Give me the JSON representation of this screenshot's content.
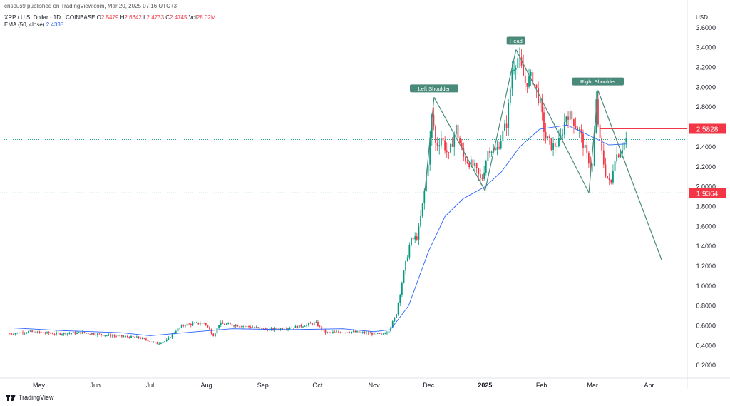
{
  "header": {
    "published": "crispus9 published on TradingView.com, Mar 20, 2025 07:16 UTC+3",
    "symbol": "XRP / U.S. Dollar · 1D · COINBASE",
    "o_label": "O",
    "o_value": "2.5479",
    "h_label": "H",
    "h_value": "2.6642",
    "l_label": "L",
    "l_value": "2.4733",
    "c_label": "C",
    "c_value": "2.4745",
    "vol_label": "Vol",
    "vol_value": "28.02M",
    "ema_label": "EMA (50, close)",
    "ema_value": "2.4335"
  },
  "currency": "USD",
  "footer": {
    "brand": "TradingView"
  },
  "colors": {
    "up": "#089981",
    "down": "#f23645",
    "ema": "#2962ff",
    "pattern": "#4a8a7a",
    "level": "#f23645"
  },
  "chart_data": {
    "type": "line",
    "title": "",
    "xlabel": "",
    "ylabel": "USD",
    "ylim": [
      0,
      3.7
    ],
    "yticks": [
      "3.6000",
      "3.4000",
      "3.2000",
      "3.0000",
      "2.8000",
      "2.6000",
      "2.4000",
      "2.2000",
      "2.0000",
      "1.8000",
      "1.6000",
      "1.4000",
      "1.2000",
      "1.0000",
      "0.8000",
      "0.6000",
      "0.4000",
      "0.2000"
    ],
    "xticks": [
      {
        "label": "May",
        "date": "2024-05-01",
        "bold": false
      },
      {
        "label": "Jun",
        "date": "2024-06-01",
        "bold": false
      },
      {
        "label": "Jul",
        "date": "2024-07-01",
        "bold": false
      },
      {
        "label": "Aug",
        "date": "2024-08-01",
        "bold": false
      },
      {
        "label": "Sep",
        "date": "2024-09-01",
        "bold": false
      },
      {
        "label": "Oct",
        "date": "2024-10-01",
        "bold": false
      },
      {
        "label": "Nov",
        "date": "2024-11-01",
        "bold": false
      },
      {
        "label": "Dec",
        "date": "2024-12-01",
        "bold": false
      },
      {
        "label": "2025",
        "date": "2025-01-01",
        "bold": true
      },
      {
        "label": "Feb",
        "date": "2025-02-01",
        "bold": false
      },
      {
        "label": "Mar",
        "date": "2025-03-01",
        "bold": false
      },
      {
        "label": "Apr",
        "date": "2025-04-01",
        "bold": false
      }
    ],
    "price_series": [
      [
        "2024-04-15",
        0.52
      ],
      [
        "2024-04-25",
        0.54
      ],
      [
        "2024-05-10",
        0.52
      ],
      [
        "2024-05-25",
        0.53
      ],
      [
        "2024-06-10",
        0.5
      ],
      [
        "2024-06-25",
        0.48
      ],
      [
        "2024-07-05",
        0.42
      ],
      [
        "2024-07-10",
        0.45
      ],
      [
        "2024-07-15",
        0.55
      ],
      [
        "2024-07-20",
        0.61
      ],
      [
        "2024-07-31",
        0.63
      ],
      [
        "2024-08-05",
        0.5
      ],
      [
        "2024-08-08",
        0.62
      ],
      [
        "2024-08-20",
        0.6
      ],
      [
        "2024-09-05",
        0.56
      ],
      [
        "2024-09-20",
        0.59
      ],
      [
        "2024-09-30",
        0.63
      ],
      [
        "2024-10-05",
        0.53
      ],
      [
        "2024-10-20",
        0.54
      ],
      [
        "2024-11-01",
        0.52
      ],
      [
        "2024-11-05",
        0.51
      ],
      [
        "2024-11-09",
        0.55
      ],
      [
        "2024-11-13",
        0.7
      ],
      [
        "2024-11-17",
        1.1
      ],
      [
        "2024-11-21",
        1.45
      ],
      [
        "2024-11-25",
        1.5
      ],
      [
        "2024-11-28",
        1.85
      ],
      [
        "2024-12-01",
        2.3
      ],
      [
        "2024-12-03",
        2.75
      ],
      [
        "2024-12-05",
        2.4
      ],
      [
        "2024-12-08",
        2.5
      ],
      [
        "2024-12-12",
        2.3
      ],
      [
        "2024-12-16",
        2.6
      ],
      [
        "2024-12-20",
        2.3
      ],
      [
        "2024-12-26",
        2.2
      ],
      [
        "2024-12-30",
        2.05
      ],
      [
        "2025-01-03",
        2.4
      ],
      [
        "2025-01-07",
        2.35
      ],
      [
        "2025-01-10",
        2.5
      ],
      [
        "2025-01-13",
        2.65
      ],
      [
        "2025-01-16",
        3.2
      ],
      [
        "2025-01-19",
        3.3
      ],
      [
        "2025-01-23",
        3.05
      ],
      [
        "2025-01-27",
        3.1
      ],
      [
        "2025-01-31",
        2.85
      ],
      [
        "2025-02-03",
        2.5
      ],
      [
        "2025-02-07",
        2.4
      ],
      [
        "2025-02-11",
        2.45
      ],
      [
        "2025-02-15",
        2.75
      ],
      [
        "2025-02-19",
        2.65
      ],
      [
        "2025-02-22",
        2.55
      ],
      [
        "2025-02-26",
        2.3
      ],
      [
        "2025-03-01",
        2.2
      ],
      [
        "2025-03-03",
        2.85
      ],
      [
        "2025-03-05",
        2.45
      ],
      [
        "2025-03-08",
        2.15
      ],
      [
        "2025-03-11",
        2.0
      ],
      [
        "2025-03-13",
        2.3
      ],
      [
        "2025-03-16",
        2.35
      ],
      [
        "2025-03-19",
        2.47
      ],
      [
        "2025-03-20",
        2.48
      ]
    ],
    "ema_series": [
      [
        "2024-04-15",
        0.58
      ],
      [
        "2024-05-15",
        0.55
      ],
      [
        "2024-06-15",
        0.53
      ],
      [
        "2024-07-01",
        0.5
      ],
      [
        "2024-07-20",
        0.53
      ],
      [
        "2024-08-15",
        0.57
      ],
      [
        "2024-09-15",
        0.56
      ],
      [
        "2024-10-15",
        0.57
      ],
      [
        "2024-11-01",
        0.54
      ],
      [
        "2024-11-10",
        0.56
      ],
      [
        "2024-11-20",
        0.8
      ],
      [
        "2024-12-01",
        1.35
      ],
      [
        "2024-12-10",
        1.7
      ],
      [
        "2024-12-20",
        1.88
      ],
      [
        "2025-01-01",
        2.0
      ],
      [
        "2025-01-10",
        2.15
      ],
      [
        "2025-01-20",
        2.4
      ],
      [
        "2025-01-31",
        2.58
      ],
      [
        "2025-02-15",
        2.62
      ],
      [
        "2025-03-01",
        2.5
      ],
      [
        "2025-03-10",
        2.42
      ],
      [
        "2025-03-20",
        2.43
      ]
    ],
    "pattern_lines": [
      [
        [
          "2024-11-29",
          1.96
        ],
        [
          "2024-12-04",
          2.9
        ]
      ],
      [
        [
          "2024-12-04",
          2.9
        ],
        [
          "2025-01-01",
          1.96
        ]
      ],
      [
        [
          "2025-01-01",
          1.96
        ],
        [
          "2025-01-18",
          3.38
        ]
      ],
      [
        [
          "2025-01-18",
          3.38
        ],
        [
          "2025-02-27",
          1.94
        ]
      ],
      [
        [
          "2025-02-27",
          1.94
        ],
        [
          "2025-03-04",
          2.97
        ]
      ],
      [
        [
          "2025-03-04",
          2.97
        ],
        [
          "2025-04-08",
          1.26
        ]
      ]
    ],
    "annotations": [
      {
        "label": "Left Shoulder",
        "date": "2024-12-04",
        "value": 2.9
      },
      {
        "label": "Head",
        "date": "2025-01-18",
        "value": 3.38
      },
      {
        "label": "Right Shoulder",
        "date": "2025-03-04",
        "value": 2.97
      }
    ],
    "levels": [
      {
        "label": "2.5828",
        "value": 2.5828,
        "start": "2025-03-05"
      },
      {
        "label": "1.9364",
        "value": 1.9364,
        "start": "2024-11-29"
      }
    ],
    "last_close_line": 2.4745,
    "neckline_dotted": 1.9364
  }
}
